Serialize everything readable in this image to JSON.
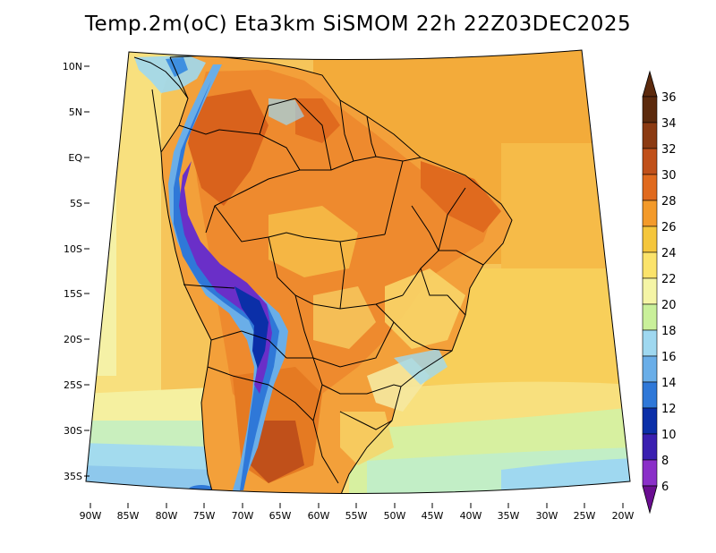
{
  "title": "Temp.2m(oC) Eta3km SiSMOM 22h 22Z03DEC2025",
  "lat_labels": [
    "10N",
    "5N",
    "EQ",
    "5S",
    "10S",
    "15S",
    "20S",
    "25S",
    "30S",
    "35S"
  ],
  "lon_labels": [
    "90W",
    "85W",
    "80W",
    "75W",
    "70W",
    "65W",
    "60W",
    "55W",
    "50W",
    "45W",
    "40W",
    "35W",
    "30W",
    "25W",
    "20W"
  ],
  "colorbar": {
    "levels": [
      "36",
      "34",
      "32",
      "30",
      "28",
      "26",
      "24",
      "22",
      "20",
      "18",
      "16",
      "14",
      "12",
      "10",
      "8",
      "6"
    ],
    "colors": [
      "#5c2a0d",
      "#8b3a12",
      "#c0501a",
      "#e06a1e",
      "#f39a2a",
      "#f5c63c",
      "#fbe36b",
      "#f5f5a6",
      "#c9f09a",
      "#9fd8f0",
      "#6aaee8",
      "#2f78d8",
      "#0b2fa8",
      "#3a1fb0",
      "#8a2fc8",
      "#6a0d91"
    ]
  }
}
